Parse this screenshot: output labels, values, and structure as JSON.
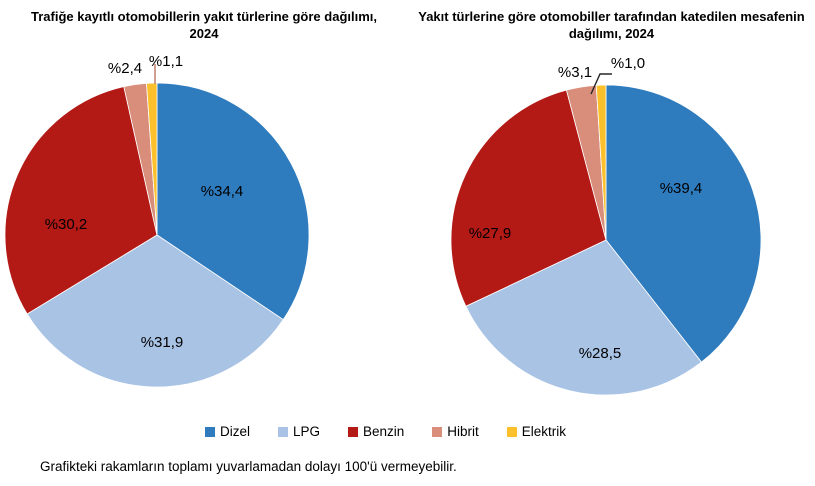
{
  "page": {
    "background": "#ffffff"
  },
  "footnote": {
    "text": "Grafikteki rakamların toplamı yuvarlamadan dolayı 100'ü vermeyebilir."
  },
  "legend": {
    "position": "bottom-center",
    "items": [
      {
        "label": "Dizel",
        "color": "#2E7BBE"
      },
      {
        "label": "LPG",
        "color": "#A9C3E5"
      },
      {
        "label": "Benzin",
        "color": "#B31A16"
      },
      {
        "label": "Hibrit",
        "color": "#D98D7B"
      },
      {
        "label": "Elektrik",
        "color": "#FBC02B"
      }
    ]
  },
  "chart_data": [
    {
      "type": "pie",
      "title": "Trafiğe kayıtlı otomobillerin yakıt türlerine göre dağılımı, 2024",
      "categories": [
        "Dizel",
        "LPG",
        "Benzin",
        "Hibrit",
        "Elektrik"
      ],
      "values": [
        34.4,
        31.9,
        30.2,
        2.4,
        1.1
      ],
      "value_labels": [
        "%34,4",
        "%31,9",
        "%30,2",
        "%2,4",
        "%1,1"
      ],
      "colors": [
        "#2E7BBE",
        "#A9C3E5",
        "#B31A16",
        "#D98D7B",
        "#FBC02B"
      ],
      "unit": "percent",
      "start_angle_deg": 0,
      "direction": "clockwise",
      "legend_position": "bottom-shared"
    },
    {
      "type": "pie",
      "title": "Yakıt türlerine göre otomobiller tarafından katedilen mesafenin dağılımı, 2024",
      "categories": [
        "Dizel",
        "LPG",
        "Benzin",
        "Hibrit",
        "Elektrik"
      ],
      "values": [
        39.4,
        28.5,
        27.9,
        3.1,
        1.0
      ],
      "value_labels": [
        "%39,4",
        "%28,5",
        "%27,9",
        "%3,1",
        "%1,0"
      ],
      "colors": [
        "#2E7BBE",
        "#A9C3E5",
        "#B31A16",
        "#D98D7B",
        "#FBC02B"
      ],
      "unit": "percent",
      "start_angle_deg": 0,
      "direction": "clockwise",
      "legend_position": "bottom-shared"
    }
  ]
}
